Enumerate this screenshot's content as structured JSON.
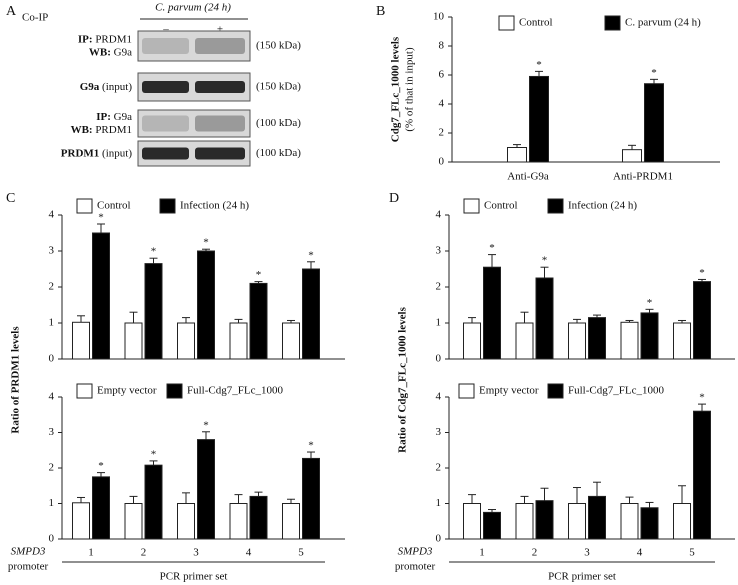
{
  "panel_labels": [
    "A",
    "B",
    "C",
    "D"
  ],
  "blot": {
    "label": "Co-IP",
    "condition": "C. parvum (24 h)",
    "lanes": [
      "–",
      "+"
    ],
    "rows": [
      {
        "lines": [
          {
            "bold": "IP:",
            "text": "PRDM1"
          },
          {
            "bold": "WB:",
            "text": "G9a"
          }
        ],
        "size": "(150 kDa)"
      },
      {
        "lines": [
          {
            "bold": "G9a",
            "text": "(input)"
          }
        ],
        "size": "(150 kDa)"
      },
      {
        "lines": [
          {
            "bold": "IP:",
            "text": "G9a"
          },
          {
            "bold": "WB:",
            "text": "PRDM1"
          }
        ],
        "size": "(100 kDa)"
      },
      {
        "lines": [
          {
            "bold": "PRDM1",
            "text": "(input)"
          }
        ],
        "size": "(100 kDa)"
      }
    ]
  },
  "chart_data": [
    {
      "type": "bar",
      "ylabel": "Cdg7_FLc_1000 levels",
      "ylabel_sub": "(% of that in input)",
      "categories": [
        "Anti-G9a",
        "Anti-PRDM1"
      ],
      "ylim": [
        0,
        10
      ],
      "yticks": [
        0,
        2,
        4,
        6,
        8,
        10
      ],
      "series": [
        {
          "name": "Control",
          "color": "#ffffff",
          "values": [
            1.0,
            0.85
          ],
          "errors": [
            0.2,
            0.3
          ]
        },
        {
          "name": "C. parvum (24 h)",
          "color": "#000000",
          "values": [
            5.9,
            5.4
          ],
          "errors": [
            0.35,
            0.3
          ],
          "significance": [
            "*",
            "*"
          ]
        }
      ]
    },
    {
      "type": "bar",
      "ylabel": "Ratio of PRDM1 levels",
      "categories": [
        null,
        null,
        null,
        null,
        null
      ],
      "ylim": [
        0,
        4
      ],
      "yticks": [
        0,
        1,
        2,
        3,
        4
      ],
      "series": [
        {
          "name": "Control",
          "color": "#ffffff",
          "values": [
            1.02,
            1.0,
            1.0,
            1.0,
            1.0
          ],
          "errors": [
            0.18,
            0.3,
            0.15,
            0.1,
            0.07
          ]
        },
        {
          "name": "Infection (24 h)",
          "color": "#000000",
          "values": [
            3.5,
            2.65,
            3.0,
            2.1,
            2.5
          ],
          "errors": [
            0.25,
            0.15,
            0.05,
            0.05,
            0.2
          ],
          "significance": [
            "*",
            "*",
            "*",
            "*",
            "*"
          ]
        }
      ]
    },
    {
      "type": "bar",
      "categories": [
        "1",
        "2",
        "3",
        "4",
        "5"
      ],
      "xlabel": "PCR primer set",
      "x_row_label": {
        "gene": "SMPD3",
        "text": "promoter"
      },
      "ylim": [
        0,
        4
      ],
      "yticks": [
        0,
        1,
        2,
        3,
        4
      ],
      "series": [
        {
          "name": "Empty vector",
          "color": "#ffffff",
          "values": [
            1.02,
            1.0,
            1.0,
            1.0,
            1.0
          ],
          "errors": [
            0.15,
            0.2,
            0.3,
            0.25,
            0.12
          ]
        },
        {
          "name": "Full-Cdg7_FLc_1000",
          "color": "#000000",
          "values": [
            1.75,
            2.08,
            2.8,
            1.2,
            2.27
          ],
          "errors": [
            0.12,
            0.12,
            0.22,
            0.12,
            0.18
          ],
          "significance": [
            "*",
            "*",
            "*",
            null,
            "*"
          ]
        }
      ]
    },
    {
      "type": "bar",
      "ylabel": "Ratio of Cdg7_FLc_1000 levels",
      "categories": [
        null,
        null,
        null,
        null,
        null
      ],
      "ylim": [
        0,
        4
      ],
      "yticks": [
        0,
        1,
        2,
        3,
        4
      ],
      "series": [
        {
          "name": "Control",
          "color": "#ffffff",
          "values": [
            1.0,
            1.0,
            1.0,
            1.02,
            1.0
          ],
          "errors": [
            0.15,
            0.3,
            0.1,
            0.05,
            0.07
          ]
        },
        {
          "name": "Infection (24 h)",
          "color": "#000000",
          "values": [
            2.55,
            2.25,
            1.15,
            1.28,
            2.15
          ],
          "errors": [
            0.35,
            0.3,
            0.07,
            0.1,
            0.06
          ],
          "significance": [
            "*",
            "*",
            null,
            "*",
            "*"
          ]
        }
      ]
    },
    {
      "type": "bar",
      "categories": [
        "1",
        "2",
        "3",
        "4",
        "5"
      ],
      "xlabel": "PCR primer set",
      "x_row_label": {
        "gene": "SMPD3",
        "text": "promoter"
      },
      "ylim": [
        0,
        4
      ],
      "yticks": [
        0,
        1,
        2,
        3,
        4
      ],
      "series": [
        {
          "name": "Empty vector",
          "color": "#ffffff",
          "values": [
            1.0,
            1.0,
            1.0,
            1.0,
            1.0
          ],
          "errors": [
            0.25,
            0.2,
            0.45,
            0.18,
            0.5
          ]
        },
        {
          "name": "Full-Cdg7_FLc_1000",
          "color": "#000000",
          "values": [
            0.75,
            1.08,
            1.2,
            0.88,
            3.6
          ],
          "errors": [
            0.08,
            0.35,
            0.4,
            0.15,
            0.2
          ],
          "significance": [
            null,
            null,
            null,
            null,
            "*"
          ]
        }
      ]
    }
  ]
}
